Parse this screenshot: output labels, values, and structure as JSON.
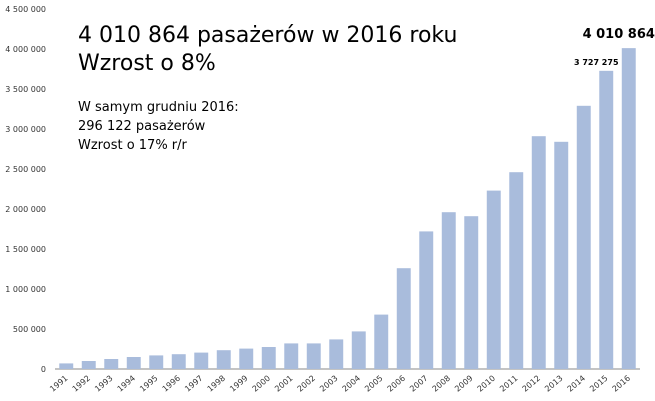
{
  "headline": {
    "line1": "4 010 864 pasażerów w 2016 roku",
    "line2": "Wzrost o 8%"
  },
  "note": {
    "line1": "W samym grudniu 2016:",
    "line2": "296 122 pasażerów",
    "line3": "Wzrost o 17% r/r"
  },
  "colors": {
    "bar": "#a9bcdc",
    "axis": "#888888",
    "grid": "#dddddd"
  },
  "chart_data": {
    "type": "bar",
    "categories": [
      "1991",
      "1992",
      "1993",
      "1994",
      "1995",
      "1996",
      "1997",
      "1998",
      "1999",
      "2000",
      "2001",
      "2002",
      "2003",
      "2004",
      "2005",
      "2006",
      "2007",
      "2008",
      "2009",
      "2010",
      "2011",
      "2012",
      "2013",
      "2014",
      "2015",
      "2016"
    ],
    "values": [
      70000,
      100000,
      125000,
      150000,
      170000,
      185000,
      205000,
      235000,
      255000,
      275000,
      320000,
      320000,
      370000,
      470000,
      680000,
      1260000,
      1720000,
      1960000,
      1910000,
      2230000,
      2460000,
      2910000,
      2840000,
      3290000,
      3727275,
      4010864
    ],
    "yticks": [
      "0",
      "500 000",
      "1 000 000",
      "1 500 000",
      "2 000 000",
      "2 500 000",
      "3 000 000",
      "3 500 000",
      "4 000 000",
      "4 500 000"
    ],
    "ylim": [
      0,
      4500000
    ],
    "data_labels": [
      {
        "category": "2015",
        "text": "3 727 275"
      },
      {
        "category": "2016",
        "text": "4 010 864"
      }
    ],
    "grid": false
  }
}
